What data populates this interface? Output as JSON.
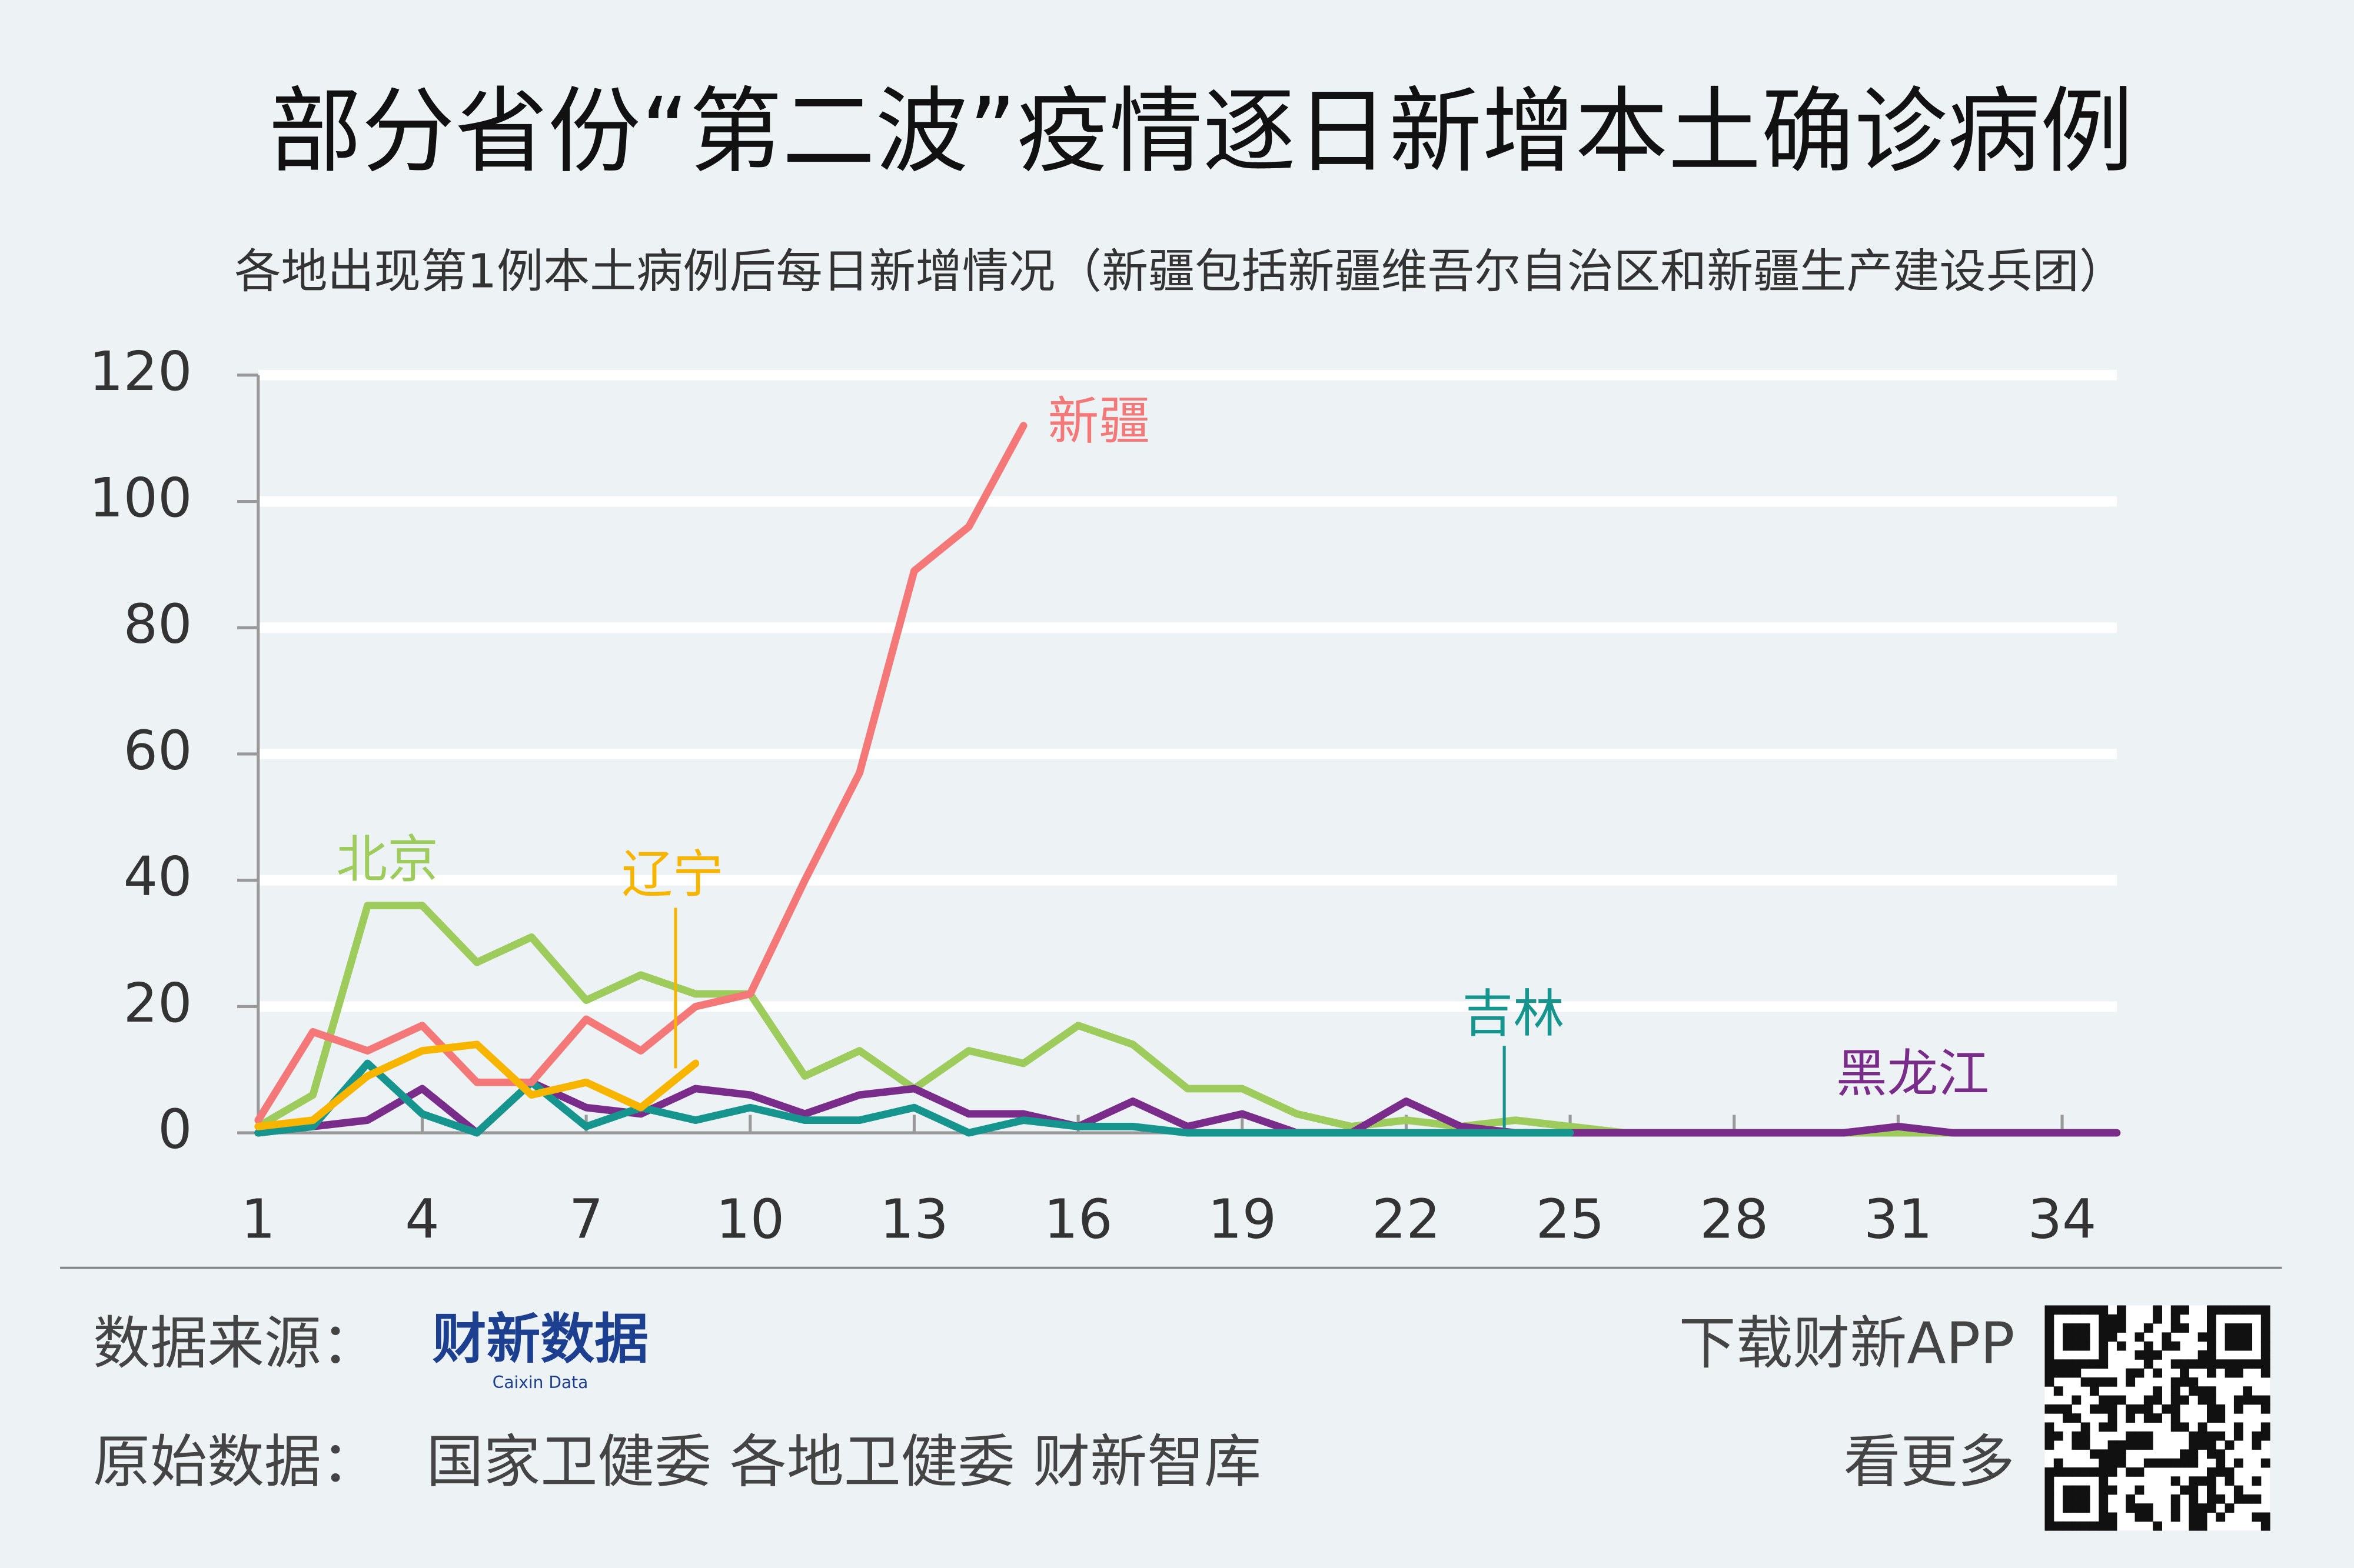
{
  "chart_data": {
    "type": "line",
    "title": "部分省份“第二波”疫情逐日新增本土确诊病例",
    "subtitle": "各地出现第1例本土病例后每日新增情况（新疆包括新疆维吾尔自治区和新疆生产建设兵团）",
    "x": [
      1,
      2,
      3,
      4,
      5,
      6,
      7,
      8,
      9,
      10,
      11,
      12,
      13,
      14,
      15,
      16,
      17,
      18,
      19,
      20,
      21,
      22,
      23,
      24,
      25,
      26,
      27,
      28,
      29,
      30,
      31,
      32,
      33,
      34,
      35
    ],
    "series": [
      {
        "name": "北京",
        "color": "#9dcc5c",
        "values": [
          1,
          6,
          36,
          36,
          27,
          31,
          21,
          25,
          22,
          22,
          9,
          13,
          7,
          13,
          11,
          17,
          14,
          7,
          7,
          3,
          1,
          2,
          1,
          2,
          1,
          0,
          0,
          0,
          0,
          0,
          0,
          0,
          0,
          0,
          0
        ]
      },
      {
        "name": "黑龙江",
        "color": "#7a2c8a",
        "values": [
          0,
          1,
          2,
          7,
          0,
          8,
          4,
          3,
          7,
          6,
          3,
          6,
          7,
          3,
          3,
          1,
          5,
          1,
          3,
          0,
          0,
          5,
          1,
          0,
          0,
          0,
          0,
          0,
          0,
          0,
          1,
          0,
          0,
          0,
          0
        ]
      },
      {
        "name": "吉林",
        "color": "#16958f",
        "values": [
          0,
          1,
          11,
          3,
          0,
          8,
          1,
          4,
          2,
          4,
          2,
          2,
          4,
          0,
          2,
          1,
          1,
          0,
          0,
          0,
          0,
          0,
          0,
          0,
          0,
          null,
          null,
          null,
          null,
          null,
          null,
          null,
          null,
          null,
          null
        ]
      },
      {
        "name": "新疆",
        "color": "#f47878",
        "values": [
          2,
          16,
          13,
          17,
          8,
          8,
          18,
          13,
          20,
          22,
          40,
          57,
          89,
          96,
          112,
          null,
          null,
          null,
          null,
          null,
          null,
          null,
          null,
          null,
          null,
          null,
          null,
          null,
          null,
          null,
          null,
          null,
          null,
          null,
          null
        ]
      },
      {
        "name": "辽宁",
        "color": "#f7b500",
        "values": [
          1,
          2,
          9,
          13,
          14,
          6,
          8,
          4,
          11,
          null,
          null,
          null,
          null,
          null,
          null,
          null,
          null,
          null,
          null,
          null,
          null,
          null,
          null,
          null,
          null,
          null,
          null,
          null,
          null,
          null,
          null,
          null,
          null,
          null,
          null
        ]
      }
    ],
    "xlim": [
      1,
      35
    ],
    "xticks": [
      1,
      4,
      7,
      10,
      13,
      16,
      19,
      22,
      25,
      28,
      31,
      34
    ],
    "ylim": [
      0,
      120
    ],
    "yticks": [
      0,
      20,
      40,
      60,
      80,
      100,
      120
    ],
    "grid": true
  },
  "footer": {
    "source_label": "数据来源：",
    "logo": "财新数据",
    "logo_sub": "Caixin Data",
    "raw_label": "原始数据：",
    "raw_sources": "国家卫健委  各地卫健委  财新智库",
    "app_line1": "下载财新APP",
    "app_line2": "看更多"
  }
}
